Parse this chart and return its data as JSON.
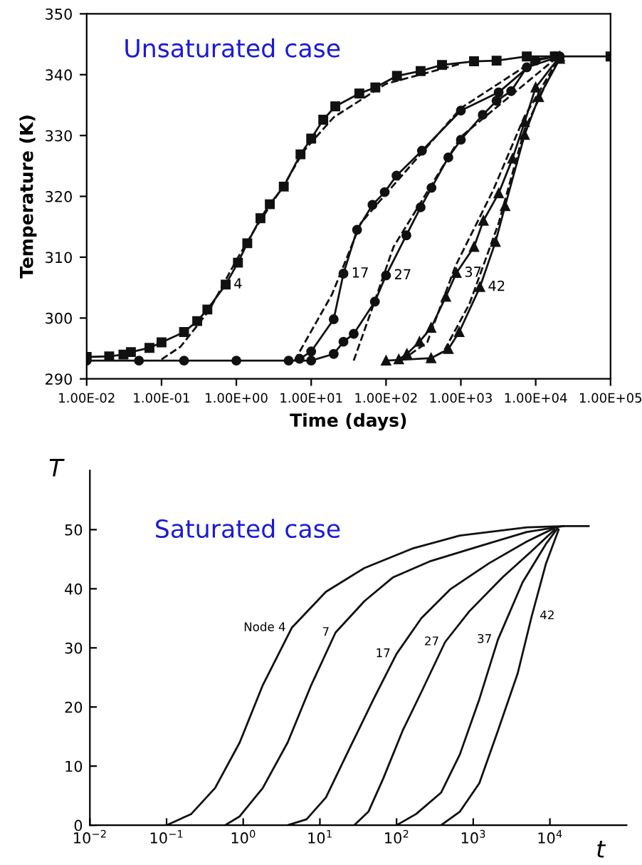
{
  "chart_data": [
    {
      "type": "line",
      "title": "Unsaturated case",
      "xlabel": "Time (days)",
      "ylabel": "Temperature (K)",
      "log": "x",
      "xlim": [
        0.01,
        100000
      ],
      "ylim": [
        290,
        350
      ],
      "xticks": [
        {
          "value": 0.01,
          "label": "1.00E-02"
        },
        {
          "value": 0.1,
          "label": "1.00E-01"
        },
        {
          "value": 1,
          "label": "1.00E+00"
        },
        {
          "value": 10,
          "label": "1.00E+01"
        },
        {
          "value": 100,
          "label": "1.00E+02"
        },
        {
          "value": 1000,
          "label": "1.00E+03"
        },
        {
          "value": 10000,
          "label": "1.00E+04"
        },
        {
          "value": 100000,
          "label": "1.00E+05"
        }
      ],
      "yticks": [
        290,
        300,
        310,
        320,
        330,
        340,
        350
      ],
      "grid": false,
      "legend": false,
      "series": [
        {
          "name": "4",
          "color": "#111111",
          "marker": "square",
          "line_style": "solid",
          "x": [
            0.01,
            0.02,
            0.031,
            0.039,
            0.069,
            0.1,
            0.2,
            0.3,
            0.41,
            0.72,
            1.05,
            1.4,
            2.1,
            2.8,
            4.3,
            7.2,
            10,
            14.5,
            21,
            44,
            72,
            140,
            290,
            560,
            1500,
            3000,
            7600,
            18000,
            100000
          ],
          "values": [
            293.6,
            293.7,
            294,
            294.4,
            295.1,
            296,
            297.7,
            299.5,
            301.4,
            305.5,
            309.1,
            312.3,
            316.4,
            318.7,
            321.6,
            326.9,
            329.5,
            332.6,
            334.8,
            336.9,
            337.9,
            339.8,
            340.6,
            341.6,
            342.2,
            342.3,
            343,
            343,
            343
          ]
        },
        {
          "color": "#111111",
          "marker": "none",
          "line_style": "dashed",
          "x": [
            0.1,
            0.18,
            0.43,
            1,
            1.85,
            4.4,
            8,
            20,
            100,
            1000
          ],
          "values": [
            293.2,
            295.3,
            301.2,
            309.5,
            315,
            322,
            327.5,
            333,
            338.5,
            341.8
          ]
        },
        {
          "name": "17",
          "color": "#111111",
          "marker": "circle",
          "line_style": "solid",
          "x": [
            7,
            10,
            20,
            27,
            41,
            66,
            96,
            138,
            302,
            1000,
            3200,
            10000,
            18000
          ],
          "values": [
            293.3,
            294.5,
            299.8,
            307.3,
            314.5,
            318.6,
            320.7,
            323.4,
            327.5,
            334.1,
            337.1,
            342.3,
            343
          ]
        },
        {
          "color": "#111111",
          "marker": "none",
          "line_style": "dashed",
          "x": [
            6,
            19,
            46,
            110,
            1000,
            10000,
            19000
          ],
          "values": [
            293,
            303.9,
            315.6,
            321,
            334.5,
            342.5,
            343
          ]
        },
        {
          "name": "27",
          "color": "#111111",
          "marker": "circle",
          "line_style": "solid",
          "x": [
            0.01,
            0.05,
            0.2,
            1,
            5,
            10,
            20,
            27,
            37,
            71,
            100,
            187,
            290,
            405,
            680,
            1000,
            1960,
            3000,
            4700,
            7600,
            21000
          ],
          "values": [
            293,
            293,
            293,
            293,
            293,
            293,
            294.1,
            296.1,
            297.4,
            302.7,
            307,
            313.6,
            318.2,
            321.4,
            326.4,
            329.3,
            333.4,
            335.7,
            337.3,
            341.2,
            343
          ]
        },
        {
          "color": "#111111",
          "marker": "none",
          "line_style": "dashed",
          "x": [
            37,
            62,
            126,
            260,
            1000,
            20000
          ],
          "values": [
            293,
            300.8,
            311.7,
            318,
            329.8,
            343
          ]
        },
        {
          "name": "37",
          "color": "#111111",
          "marker": "triangle",
          "line_style": "solid",
          "x": [
            148,
            190,
            280,
            400,
            630,
            870,
            1500,
            2000,
            3200,
            4900,
            7100,
            10000,
            21000
          ],
          "values": [
            293.2,
            294.1,
            296.1,
            298.4,
            303.5,
            307.4,
            311.7,
            316,
            320.5,
            326.2,
            332.2,
            337.9,
            343
          ]
        },
        {
          "color": "#111111",
          "marker": "none",
          "line_style": "dashed",
          "x": [
            160,
            355,
            850,
            2700,
            7000,
            21000
          ],
          "values": [
            293,
            296,
            308.6,
            321,
            333,
            343
          ]
        },
        {
          "name": "42",
          "color": "#111111",
          "marker": "triangle",
          "line_style": "solid",
          "x": [
            100,
            400,
            680,
            950,
            1800,
            2900,
            3900,
            7100,
            11000,
            21000
          ],
          "values": [
            293,
            293.4,
            294.9,
            297.7,
            305.1,
            312.5,
            318.4,
            330.1,
            336.3,
            342.6
          ]
        },
        {
          "color": "#111111",
          "marker": "none",
          "line_style": "dashed",
          "x": [
            350,
            590,
            1300,
            3200,
            7100,
            20500
          ],
          "values": [
            293,
            294.5,
            302.3,
            315.6,
            331,
            343
          ]
        }
      ]
    },
    {
      "type": "line",
      "title": "Saturated case",
      "xlabel": "t",
      "ylabel": "T",
      "log": "x",
      "xlim": [
        0.01,
        100000
      ],
      "ylim": [
        0,
        60
      ],
      "xticks": [
        {
          "value": 0.01,
          "label": "10$^{−2}$"
        },
        {
          "value": 0.1,
          "label": "10$^{−1}$"
        },
        {
          "value": 1,
          "label": "10$^{0}$"
        },
        {
          "value": 10,
          "label": "10$^{1}$"
        },
        {
          "value": 100,
          "label": "10$^{2}$"
        },
        {
          "value": 1000,
          "label": "10$^{3}$"
        },
        {
          "value": 10000,
          "label": "10$^{4}$"
        }
      ],
      "yticks": [
        0,
        10,
        20,
        30,
        40,
        50
      ],
      "grid": false,
      "legend": false,
      "marker": "none",
      "line_style": "solid",
      "series": [
        {
          "name": "Node 4",
          "color": "#111111",
          "x": [
            0.1,
            0.21,
            0.43,
            0.9,
            1.8,
            4.3,
            12,
            38,
            160,
            670,
            5000,
            16000,
            32000
          ],
          "values": [
            0,
            1.9,
            6.3,
            14,
            23.7,
            33.4,
            39.5,
            43.5,
            46.8,
            49,
            50.4,
            50.6,
            50.6
          ]
        },
        {
          "name": "7",
          "color": "#111111",
          "x": [
            0.58,
            0.9,
            1.8,
            3.8,
            7.7,
            16,
            38,
            89,
            280,
            1200,
            5000,
            15000
          ],
          "values": [
            0,
            1.5,
            6.3,
            14,
            23.7,
            32.6,
            37.9,
            41.9,
            44.7,
            47.2,
            49.6,
            50.6
          ]
        },
        {
          "name": "17",
          "color": "#111111",
          "x": [
            3.8,
            6.7,
            12,
            24,
            50,
            100,
            210,
            500,
            1600,
            5000,
            12000
          ],
          "values": [
            0,
            1,
            4.7,
            12.8,
            21.3,
            29,
            35,
            39.9,
            44.3,
            48,
            50.4
          ]
        },
        {
          "name": "27",
          "color": "#111111",
          "x": [
            28,
            43,
            67,
            120,
            210,
            430,
            890,
            2400,
            5800,
            11500
          ],
          "values": [
            0,
            2.3,
            7.9,
            16,
            22.5,
            31,
            36.2,
            41.9,
            46.4,
            50
          ]
        },
        {
          "name": "37",
          "color": "#111111",
          "x": [
            100,
            180,
            380,
            670,
            1200,
            2100,
            4400,
            8900,
            12500
          ],
          "values": [
            0,
            1.9,
            5.5,
            12,
            21.3,
            31.4,
            41.1,
            47.6,
            50.2
          ]
        },
        {
          "name": "42",
          "color": "#111111",
          "x": [
            380,
            670,
            1200,
            2100,
            3800,
            5800,
            8900,
            13000
          ],
          "values": [
            0,
            2.3,
            7.1,
            16,
            25.7,
            35.4,
            44.3,
            50
          ]
        }
      ]
    }
  ]
}
